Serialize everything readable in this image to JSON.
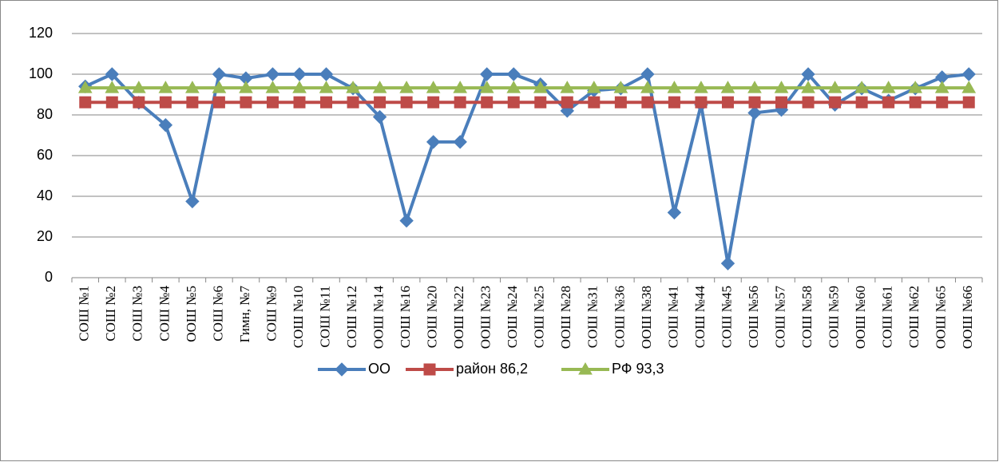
{
  "chart_data": {
    "type": "line",
    "categories": [
      "СОШ №1",
      "СОШ №2",
      "СОШ №3",
      "СОШ №4",
      "ООШ №5",
      "СОШ №6",
      "Гимн, №7",
      "СОШ №9",
      "СОШ №10",
      "СОШ №11",
      "СОШ №12",
      "ООШ №14",
      "СОШ №16",
      "СОШ №20",
      "ООШ №22",
      "ООШ №23",
      "СОШ №24",
      "СОШ №25",
      "ООШ №28",
      "СОШ №31",
      "СОШ №36",
      "ООШ №38",
      "СОШ №41",
      "СОШ №44",
      "СОШ №45",
      "СОШ №56",
      "СОШ №57",
      "СОШ №58",
      "СОШ №59",
      "ООШ №60",
      "СОШ №61",
      "СОШ №62",
      "ООШ №65",
      "ООШ №66"
    ],
    "series": [
      {
        "name": "ОО",
        "color": "#4a7ebb",
        "marker": "diamond",
        "values": [
          94,
          100,
          86,
          75,
          37.5,
          100,
          98,
          100,
          100,
          100,
          93,
          79,
          28,
          66.7,
          66.7,
          100,
          100,
          95,
          82,
          92,
          93,
          100,
          32,
          85,
          7,
          81,
          82.5,
          100,
          85,
          93,
          87,
          93,
          98.5,
          100
        ]
      },
      {
        "name": "район 86,2",
        "color": "#be4b48",
        "marker": "square",
        "values": [
          86.2,
          86.2,
          86.2,
          86.2,
          86.2,
          86.2,
          86.2,
          86.2,
          86.2,
          86.2,
          86.2,
          86.2,
          86.2,
          86.2,
          86.2,
          86.2,
          86.2,
          86.2,
          86.2,
          86.2,
          86.2,
          86.2,
          86.2,
          86.2,
          86.2,
          86.2,
          86.2,
          86.2,
          86.2,
          86.2,
          86.2,
          86.2,
          86.2,
          86.2
        ]
      },
      {
        "name": "РФ 93,3",
        "color": "#98b954",
        "marker": "triangle",
        "values": [
          93.3,
          93.3,
          93.3,
          93.3,
          93.3,
          93.3,
          93.3,
          93.3,
          93.3,
          93.3,
          93.3,
          93.3,
          93.3,
          93.3,
          93.3,
          93.3,
          93.3,
          93.3,
          93.3,
          93.3,
          93.3,
          93.3,
          93.3,
          93.3,
          93.3,
          93.3,
          93.3,
          93.3,
          93.3,
          93.3,
          93.3,
          93.3,
          93.3,
          93.3
        ]
      }
    ],
    "ylim": [
      0,
      120
    ],
    "yticks": [
      0,
      20,
      40,
      60,
      80,
      100,
      120
    ],
    "grid": true,
    "legend": "bottom"
  }
}
